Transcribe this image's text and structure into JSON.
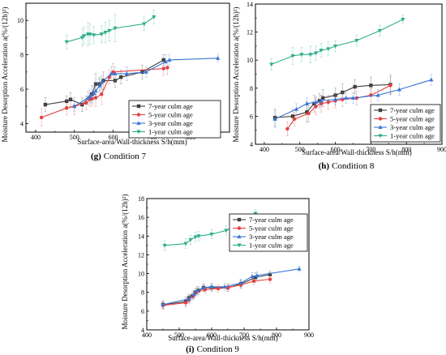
{
  "chart_data": [
    {
      "type": "line",
      "caption_letter": "(g)",
      "caption_text": "Condition 7",
      "xlabel": "Surface-area/Wall-thickness S/h(mm)",
      "ylabel": "Moisture Desorption Acceleration a(%/(12h)²)",
      "xlim": [
        375,
        900
      ],
      "ylim": [
        3.5,
        11
      ],
      "xticks": [
        "400",
        "500",
        "600",
        "700",
        "800"
      ],
      "yticks": [
        "4",
        "6",
        "8",
        "10"
      ],
      "legend_position": "lower-right",
      "series": [
        {
          "name": "7-year culm age",
          "color": "#404040",
          "marker": "square",
          "x": [
            425,
            480,
            490,
            520,
            545,
            555,
            565,
            575,
            605,
            620,
            675,
            730
          ],
          "y": [
            5.1,
            5.3,
            5.4,
            5.1,
            5.7,
            6.3,
            6.3,
            6.5,
            6.5,
            6.7,
            7.0,
            7.7
          ],
          "err": [
            0.4,
            0.3,
            0.4,
            0.4,
            0.5,
            0.6,
            0.4,
            0.5,
            0.4,
            0.4,
            0.4,
            0.3
          ]
        },
        {
          "name": "5-year culm age",
          "color": "#e8403f",
          "marker": "circle",
          "x": [
            415,
            480,
            500,
            530,
            540,
            545,
            555,
            570,
            590,
            600,
            730,
            740
          ],
          "y": [
            4.35,
            4.9,
            5.0,
            5.2,
            5.4,
            5.45,
            5.5,
            5.7,
            6.7,
            7.0,
            7.2,
            7.25
          ],
          "err": [
            0.5,
            0.4,
            0.5,
            0.4,
            0.4,
            0.4,
            0.5,
            0.6,
            0.4,
            0.5,
            0.4,
            0.4
          ]
        },
        {
          "name": "3-year culm age",
          "color": "#3a76d6",
          "marker": "triangle",
          "x": [
            500,
            535,
            540,
            550,
            555,
            565,
            570,
            595,
            605,
            635,
            685,
            735,
            745,
            870
          ],
          "y": [
            5.0,
            5.5,
            5.6,
            5.75,
            5.9,
            6.2,
            6.4,
            6.9,
            6.9,
            6.9,
            7.0,
            7.6,
            7.7,
            7.8
          ],
          "err": [
            0.3,
            0.4,
            0.4,
            0.4,
            0.4,
            0.4,
            0.4,
            0.4,
            0.4,
            0.4,
            0.3,
            0.4,
            0.3,
            0.2
          ]
        },
        {
          "name": "1-year culm age",
          "color": "#2eae8b",
          "marker": "triangle-down",
          "x": [
            480,
            520,
            525,
            535,
            540,
            550,
            570,
            580,
            590,
            605,
            680,
            705
          ],
          "y": [
            8.75,
            9.0,
            9.1,
            9.2,
            9.2,
            9.15,
            9.2,
            9.3,
            9.4,
            9.55,
            9.8,
            10.2
          ],
          "err": [
            0.4,
            0.5,
            0.5,
            0.7,
            0.6,
            0.5,
            0.5,
            0.6,
            0.6,
            0.8,
            0.4,
            0.4
          ]
        }
      ]
    },
    {
      "type": "line",
      "caption_letter": "(h)",
      "caption_text": "Condition 8",
      "xlabel": "Surface-area/Wall-thickness S/h(mm)",
      "ylabel": "Moisture Desorption Acceleration a(%/(12h)²)",
      "xlim": [
        375,
        900
      ],
      "ylim": [
        4,
        14
      ],
      "xticks": [
        "400",
        "500",
        "600",
        "700",
        "800",
        "900"
      ],
      "yticks": [
        "4",
        "6",
        "8",
        "10",
        "12",
        "14"
      ],
      "legend_position": "lower-right",
      "series": [
        {
          "name": "7-year culm age",
          "color": "#404040",
          "marker": "square",
          "x": [
            430,
            480,
            520,
            540,
            555,
            565,
            600,
            620,
            655,
            700,
            755
          ],
          "y": [
            5.9,
            6.0,
            6.3,
            6.9,
            7.1,
            7.3,
            7.5,
            7.7,
            8.1,
            8.2,
            8.25
          ],
          "err": [
            0.6,
            0.5,
            0.7,
            0.6,
            0.5,
            0.6,
            0.5,
            0.6,
            0.5,
            0.6,
            0.7
          ]
        },
        {
          "name": "5-year culm age",
          "color": "#e8403f",
          "marker": "circle",
          "x": [
            465,
            485,
            525,
            545,
            560,
            580,
            600,
            620,
            660,
            700,
            755
          ],
          "y": [
            5.1,
            5.8,
            6.2,
            6.7,
            6.9,
            7.0,
            7.1,
            7.2,
            7.3,
            7.5,
            8.2
          ],
          "err": [
            0.5,
            0.5,
            0.6,
            0.6,
            0.6,
            0.5,
            0.5,
            0.5,
            0.5,
            0.5,
            0.6
          ]
        },
        {
          "name": "3-year culm age",
          "color": "#3a76d6",
          "marker": "triangle",
          "x": [
            430,
            490,
            520,
            545,
            560,
            600,
            630,
            650,
            720,
            780,
            870
          ],
          "y": [
            5.8,
            6.5,
            6.9,
            7.0,
            7.1,
            7.2,
            7.3,
            7.3,
            7.5,
            7.9,
            8.6
          ],
          "err": [
            0.6,
            0.4,
            0.4,
            0.4,
            0.4,
            0.4,
            0.4,
            0.4,
            0.4,
            0.4,
            0.4
          ]
        },
        {
          "name": "1-year culm age",
          "color": "#2eae8b",
          "marker": "triangle-down",
          "x": [
            420,
            480,
            505,
            530,
            545,
            560,
            580,
            600,
            660,
            725,
            790
          ],
          "y": [
            9.7,
            10.3,
            10.4,
            10.4,
            10.5,
            10.7,
            10.8,
            11.0,
            11.4,
            12.1,
            12.9
          ],
          "err": [
            0.4,
            0.6,
            0.5,
            0.6,
            0.5,
            0.5,
            0.5,
            0.4,
            0.4,
            0.4,
            0.3
          ]
        }
      ]
    },
    {
      "type": "line",
      "caption_letter": "(i)",
      "caption_text": "Condition 9",
      "xlabel": "Surface-area/Wall-thickness S/h(mm)",
      "ylabel": "Moisture Desorption Acceleration a(%/(12h)²)",
      "xlim": [
        400,
        900
      ],
      "ylim": [
        4,
        18
      ],
      "xticks": [
        "400",
        "500",
        "600",
        "700",
        "800",
        "900"
      ],
      "yticks": [
        "4",
        "6",
        "8",
        "10",
        "12",
        "14",
        "16",
        "18"
      ],
      "legend_position": "right",
      "series": [
        {
          "name": "7-year culm age",
          "color": "#404040",
          "marker": "square",
          "x": [
            450,
            520,
            530,
            540,
            550,
            560,
            575,
            600,
            650,
            690,
            735,
            780
          ],
          "y": [
            6.7,
            7.0,
            7.4,
            7.6,
            8.0,
            8.2,
            8.5,
            8.5,
            8.5,
            8.9,
            9.6,
            9.9
          ],
          "err": [
            0.4,
            0.5,
            0.4,
            0.4,
            0.4,
            0.4,
            0.4,
            0.4,
            0.4,
            0.4,
            0.5,
            0.4
          ]
        },
        {
          "name": "5-year culm age",
          "color": "#e8403f",
          "marker": "circle",
          "x": [
            450,
            520,
            530,
            545,
            555,
            580,
            620,
            650,
            690,
            730,
            780
          ],
          "y": [
            6.6,
            6.9,
            7.2,
            7.7,
            8.1,
            8.3,
            8.4,
            8.5,
            8.8,
            9.2,
            9.4
          ],
          "err": [
            0.4,
            0.4,
            0.4,
            0.4,
            0.4,
            0.4,
            0.4,
            0.4,
            0.4,
            0.4,
            0.4
          ]
        },
        {
          "name": "3-year culm age",
          "color": "#3a76d6",
          "marker": "triangle",
          "x": [
            450,
            530,
            545,
            555,
            575,
            600,
            640,
            690,
            725,
            740,
            870
          ],
          "y": [
            6.7,
            7.3,
            7.8,
            8.2,
            8.5,
            8.6,
            8.6,
            9.0,
            9.7,
            9.8,
            10.5
          ],
          "err": [
            0.4,
            0.4,
            0.4,
            0.4,
            0.4,
            0.4,
            0.4,
            0.4,
            0.4,
            0.4,
            0.3
          ]
        },
        {
          "name": "1-year culm age",
          "color": "#2eae8b",
          "marker": "triangle-down",
          "x": [
            455,
            520,
            535,
            550,
            560,
            600,
            645,
            690,
            720,
            735
          ],
          "y": [
            13.0,
            13.2,
            13.6,
            13.9,
            14.0,
            14.2,
            14.6,
            15.3,
            15.8,
            16.4
          ],
          "err": [
            0.5,
            0.5,
            0.5,
            0.5,
            0.5,
            0.5,
            0.5,
            0.5,
            0.4,
            0.4
          ]
        }
      ]
    }
  ]
}
